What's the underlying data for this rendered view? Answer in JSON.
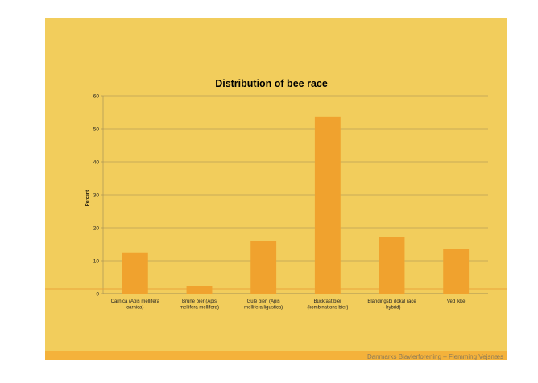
{
  "slide": {
    "footer": "Danmarks Biavlerforening – Flemming Vejsnæs"
  },
  "colors": {
    "background": "#f2cd5c",
    "bar": "#f0a22e",
    "accent_line": "#e9a33a",
    "footer_band": "#f4b23b",
    "gridline": "#9d8a55"
  },
  "chart_data": {
    "type": "bar",
    "title": "Distribution of bee race",
    "xlabel": "",
    "ylabel": "Percent",
    "ylim": [
      0,
      60
    ],
    "yticks": [
      0,
      10,
      20,
      30,
      40,
      50,
      60
    ],
    "grid": true,
    "legend": "none",
    "categories": [
      [
        "Carnica (Apis mellifera",
        "carnica)"
      ],
      [
        "Brune bier (Apis",
        "mellifera mellifera)"
      ],
      [
        "Gule bier. (Apis",
        "mellifera ligustica)"
      ],
      [
        "Buckfast bier",
        "(kombinations bier)"
      ],
      [
        "Blandingsbi (lokal race",
        "- hybrid)"
      ],
      [
        "Ved ikke"
      ]
    ],
    "values": [
      12.5,
      2.2,
      16.1,
      53.7,
      17.2,
      13.5
    ]
  }
}
